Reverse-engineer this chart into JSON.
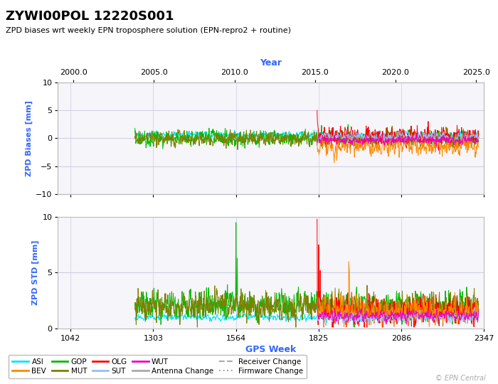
{
  "title": "ZYWI00POL 12220S001",
  "subtitle": "ZPD biases wrt weekly EPN troposphere solution (EPN-repro2 + routine)",
  "top_xlabel": "Year",
  "bottom_xlabel": "GPS Week",
  "ylabel_top": "ZPD Biases [mm]",
  "ylabel_bottom": "ZPD STD [mm]",
  "gps_week_min": 1000,
  "gps_week_max": 2347,
  "gps_week_ticks": [
    1042,
    1303,
    1564,
    1825,
    2086,
    2347
  ],
  "year_min": 1999.0,
  "year_max": 2025.5,
  "year_ticks": [
    2000.0,
    2005.0,
    2010.0,
    2015.0,
    2020.0,
    2025.0
  ],
  "bias_ylim": [
    -10,
    10
  ],
  "bias_yticks": [
    -10,
    -5,
    0,
    5,
    10
  ],
  "std_ylim": [
    0,
    10
  ],
  "std_yticks": [
    0,
    5,
    10
  ],
  "colors": {
    "ASI": "#00e5ff",
    "BEV": "#ff8800",
    "GOP": "#00bb00",
    "MUT": "#808000",
    "OLG": "#ff0000",
    "SUT": "#99bbff",
    "WUT": "#ee00bb"
  },
  "legend_row1": [
    "ASI",
    "BEV",
    "GOP",
    "MUT",
    "OLG",
    "SUT",
    "WUT",
    "Antenna Change"
  ],
  "legend_row2": [
    "Receiver Change",
    "Firmware Change"
  ],
  "background_color": "#eeeef5",
  "plot_bg": "#f5f5fa",
  "border_color": "#bbbbbb",
  "title_color": "#000000",
  "axis_label_color": "#3366ff",
  "grid_color": "#ccccdd",
  "epn_central_color": "#aaaaaa",
  "change_color": "#aaaaaa"
}
